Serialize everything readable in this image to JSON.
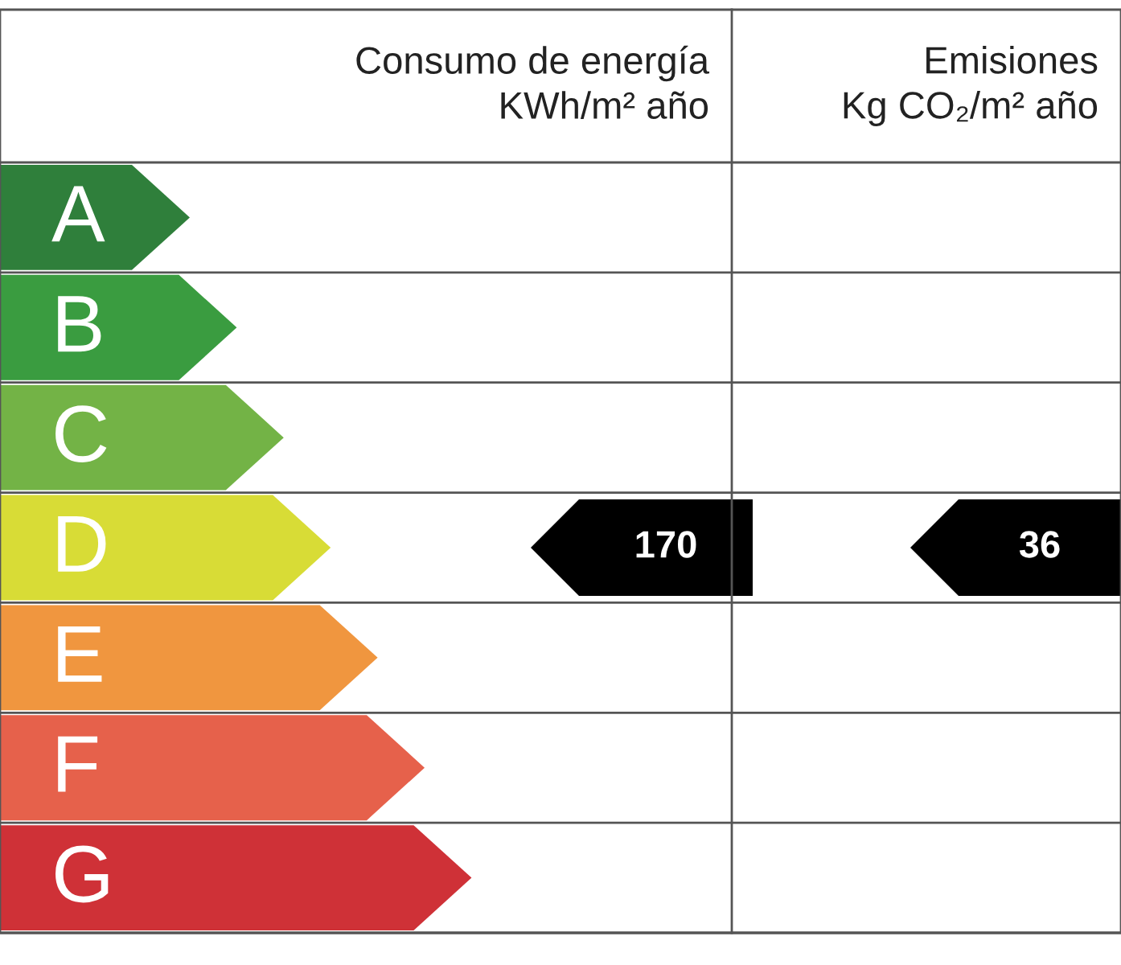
{
  "chart_data": {
    "type": "other",
    "data_labels": true,
    "categories": [
      "A",
      "B",
      "C",
      "D",
      "E",
      "F",
      "G"
    ],
    "colors": [
      "#2f7f3b",
      "#3a9c40",
      "#73b346",
      "#d8dc36",
      "#f0963f",
      "#e6614b",
      "#cf3137"
    ],
    "annotations": [
      "Consumo de energía\nKWh/m² año",
      "Emisiones\nKg CO₂/m² año"
    ],
    "series": [
      {
        "color": "#000000",
        "values": [
          null,
          null,
          null,
          170,
          null,
          null,
          null
        ]
      },
      {
        "color": "#000000",
        "values": [
          null,
          null,
          null,
          36,
          null,
          null,
          null
        ]
      }
    ]
  }
}
